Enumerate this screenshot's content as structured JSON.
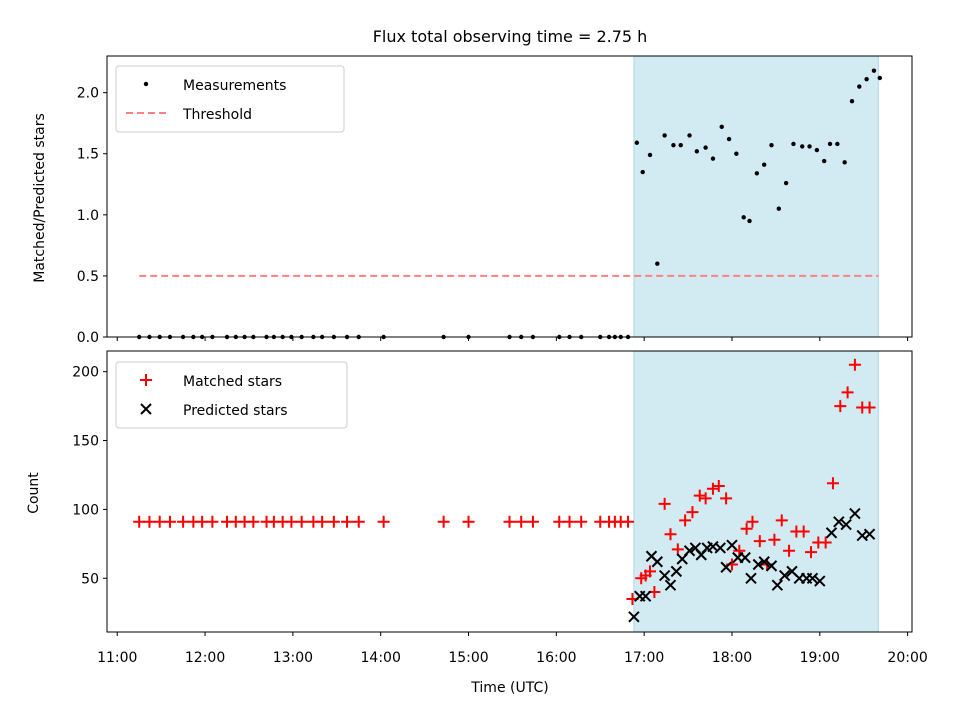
{
  "chart_data": [
    {
      "type": "scatter",
      "title": "Flux total observing time = 2.75 h",
      "xlabel": "",
      "ylabel": "Matched/Predicted stars",
      "ylim": [
        0,
        2.3
      ],
      "yticks": [
        "0.0",
        "0.5",
        "1.0",
        "1.5",
        "2.0"
      ],
      "xlim": [
        "10:53",
        "20:03"
      ],
      "grid": false,
      "legend_position": "top-left",
      "legend": [
        "Measurements",
        "Threshold"
      ],
      "shaded_interval": {
        "start": "16:53",
        "end": "19:40",
        "color": "#add8e6"
      },
      "threshold": {
        "name": "Threshold",
        "value": 0.5,
        "start": "11:15",
        "end": "19:40",
        "color": "#ff8080"
      },
      "series": [
        {
          "name": "Measurements",
          "color": "#000000",
          "points": [
            [
              "11:15",
              0
            ],
            [
              "11:22",
              0
            ],
            [
              "11:29",
              0
            ],
            [
              "11:36",
              0
            ],
            [
              "11:45",
              0
            ],
            [
              "11:52",
              0
            ],
            [
              "11:58",
              0
            ],
            [
              "12:05",
              0
            ],
            [
              "12:15",
              0
            ],
            [
              "12:21",
              0
            ],
            [
              "12:27",
              0
            ],
            [
              "12:33",
              0
            ],
            [
              "12:42",
              0
            ],
            [
              "12:47",
              0
            ],
            [
              "12:53",
              0
            ],
            [
              "12:59",
              0
            ],
            [
              "13:06",
              0
            ],
            [
              "13:14",
              0
            ],
            [
              "13:20",
              0
            ],
            [
              "13:28",
              0
            ],
            [
              "13:37",
              0
            ],
            [
              "13:45",
              0
            ],
            [
              "14:02",
              0
            ],
            [
              "14:43",
              0
            ],
            [
              "15:00",
              0
            ],
            [
              "15:28",
              0
            ],
            [
              "15:36",
              0
            ],
            [
              "15:44",
              0
            ],
            [
              "16:02",
              0
            ],
            [
              "16:09",
              0
            ],
            [
              "16:17",
              0
            ],
            [
              "16:30",
              0
            ],
            [
              "16:36",
              0
            ],
            [
              "16:40",
              0
            ],
            [
              "16:44",
              0
            ],
            [
              "16:49",
              0
            ],
            [
              "16:55",
              1.59
            ],
            [
              "16:59",
              1.35
            ],
            [
              "17:04",
              1.49
            ],
            [
              "17:09",
              0.6
            ],
            [
              "17:14",
              1.65
            ],
            [
              "17:20",
              1.57
            ],
            [
              "17:25",
              1.57
            ],
            [
              "17:31",
              1.65
            ],
            [
              "17:36",
              1.52
            ],
            [
              "17:42",
              1.55
            ],
            [
              "17:47",
              1.46
            ],
            [
              "17:53",
              1.72
            ],
            [
              "17:58",
              1.62
            ],
            [
              "18:03",
              1.5
            ],
            [
              "18:08",
              0.98
            ],
            [
              "18:12",
              0.95
            ],
            [
              "18:17",
              1.34
            ],
            [
              "18:22",
              1.41
            ],
            [
              "18:27",
              1.57
            ],
            [
              "18:32",
              1.05
            ],
            [
              "18:37",
              1.26
            ],
            [
              "18:42",
              1.58
            ],
            [
              "18:48",
              1.56
            ],
            [
              "18:53",
              1.56
            ],
            [
              "18:58",
              1.53
            ],
            [
              "19:03",
              1.44
            ],
            [
              "19:07",
              1.58
            ],
            [
              "19:12",
              1.58
            ],
            [
              "19:17",
              1.43
            ],
            [
              "19:22",
              1.93
            ],
            [
              "19:27",
              2.05
            ],
            [
              "19:32",
              2.11
            ],
            [
              "19:37",
              2.18
            ],
            [
              "19:41",
              2.12
            ]
          ]
        }
      ]
    },
    {
      "type": "scatter",
      "title": "",
      "xlabel": "Time (UTC)",
      "ylabel": "Count",
      "ylim": [
        11,
        215
      ],
      "yticks": [
        "50",
        "100",
        "150",
        "200"
      ],
      "xlim": [
        "10:53",
        "20:03"
      ],
      "xticks": [
        "11:00",
        "12:00",
        "13:00",
        "14:00",
        "15:00",
        "16:00",
        "17:00",
        "18:00",
        "19:00",
        "20:00"
      ],
      "grid": false,
      "legend_position": "top-left",
      "legend": [
        "Matched stars",
        "Predicted stars"
      ],
      "shaded_interval": {
        "start": "16:53",
        "end": "19:40",
        "color": "#add8e6"
      },
      "series": [
        {
          "name": "Matched stars",
          "marker": "plus",
          "color": "#ff0000",
          "points": [
            [
              "11:15",
              91
            ],
            [
              "11:22",
              91
            ],
            [
              "11:29",
              91
            ],
            [
              "11:36",
              91
            ],
            [
              "11:45",
              91
            ],
            [
              "11:52",
              91
            ],
            [
              "11:58",
              91
            ],
            [
              "12:05",
              91
            ],
            [
              "12:15",
              91
            ],
            [
              "12:21",
              91
            ],
            [
              "12:27",
              91
            ],
            [
              "12:33",
              91
            ],
            [
              "12:42",
              91
            ],
            [
              "12:47",
              91
            ],
            [
              "12:53",
              91
            ],
            [
              "12:59",
              91
            ],
            [
              "13:06",
              91
            ],
            [
              "13:14",
              91
            ],
            [
              "13:20",
              91
            ],
            [
              "13:28",
              91
            ],
            [
              "13:37",
              91
            ],
            [
              "13:45",
              91
            ],
            [
              "14:02",
              91
            ],
            [
              "14:43",
              91
            ],
            [
              "15:00",
              91
            ],
            [
              "15:28",
              91
            ],
            [
              "15:36",
              91
            ],
            [
              "15:44",
              91
            ],
            [
              "16:02",
              91
            ],
            [
              "16:09",
              91
            ],
            [
              "16:17",
              91
            ],
            [
              "16:30",
              91
            ],
            [
              "16:36",
              91
            ],
            [
              "16:40",
              91
            ],
            [
              "16:44",
              91
            ],
            [
              "16:49",
              91
            ],
            [
              "16:52",
              35
            ],
            [
              "16:58",
              50
            ],
            [
              "17:01",
              52
            ],
            [
              "17:04",
              55
            ],
            [
              "17:07",
              40
            ],
            [
              "17:14",
              104
            ],
            [
              "17:18",
              82
            ],
            [
              "17:23",
              71
            ],
            [
              "17:28",
              92
            ],
            [
              "17:33",
              98
            ],
            [
              "17:38",
              110
            ],
            [
              "17:42",
              108
            ],
            [
              "17:47",
              115
            ],
            [
              "17:51",
              117
            ],
            [
              "17:56",
              108
            ],
            [
              "18:00",
              60
            ],
            [
              "18:05",
              70
            ],
            [
              "18:10",
              86
            ],
            [
              "18:14",
              91
            ],
            [
              "18:19",
              77
            ],
            [
              "18:24",
              60
            ],
            [
              "18:29",
              78
            ],
            [
              "18:34",
              92
            ],
            [
              "18:39",
              70
            ],
            [
              "18:44",
              84
            ],
            [
              "18:49",
              84
            ],
            [
              "18:54",
              69
            ],
            [
              "18:59",
              76
            ],
            [
              "19:04",
              76
            ],
            [
              "19:09",
              119
            ],
            [
              "19:14",
              175
            ],
            [
              "19:19",
              185
            ],
            [
              "19:24",
              205
            ],
            [
              "19:29",
              174
            ],
            [
              "19:34",
              174
            ]
          ]
        },
        {
          "name": "Predicted stars",
          "marker": "x",
          "color": "#000000",
          "points": [
            [
              "16:53",
              22
            ],
            [
              "16:57",
              37
            ],
            [
              "17:01",
              37
            ],
            [
              "17:05",
              66
            ],
            [
              "17:09",
              62
            ],
            [
              "17:14",
              52
            ],
            [
              "17:18",
              45
            ],
            [
              "17:22",
              55
            ],
            [
              "17:26",
              64
            ],
            [
              "17:31",
              70
            ],
            [
              "17:35",
              72
            ],
            [
              "17:39",
              67
            ],
            [
              "17:43",
              72
            ],
            [
              "17:47",
              73
            ],
            [
              "17:52",
              72
            ],
            [
              "17:56",
              58
            ],
            [
              "18:00",
              74
            ],
            [
              "18:04",
              65
            ],
            [
              "18:09",
              65
            ],
            [
              "18:13",
              50
            ],
            [
              "18:18",
              60
            ],
            [
              "18:22",
              62
            ],
            [
              "18:27",
              59
            ],
            [
              "18:31",
              45
            ],
            [
              "18:36",
              52
            ],
            [
              "18:41",
              55
            ],
            [
              "18:46",
              50
            ],
            [
              "18:51",
              50
            ],
            [
              "18:55",
              50
            ],
            [
              "19:00",
              48
            ],
            [
              "19:08",
              83
            ],
            [
              "19:13",
              91
            ],
            [
              "19:18",
              89
            ],
            [
              "19:24",
              97
            ],
            [
              "19:29",
              81
            ],
            [
              "19:34",
              82
            ]
          ]
        }
      ]
    }
  ]
}
